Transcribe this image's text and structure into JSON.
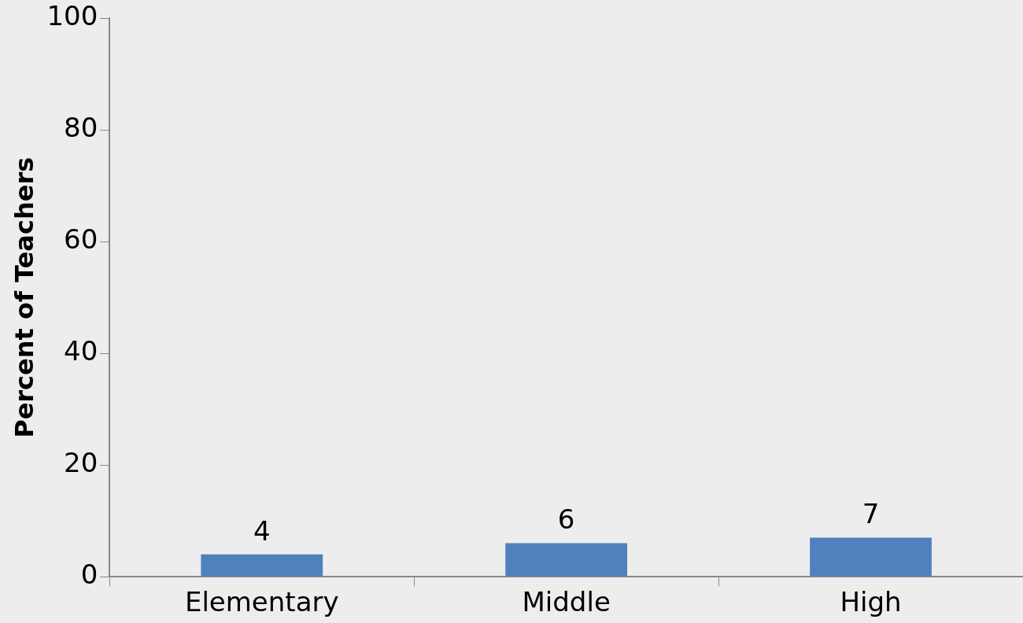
{
  "chart_data": {
    "type": "bar",
    "ylabel": "Percent of Teachers",
    "categories": [
      "Elementary",
      "Middle",
      "High"
    ],
    "values": [
      4,
      6,
      7
    ],
    "color": "#4f81bd",
    "ylim": [
      0,
      100
    ],
    "yticks": [
      0,
      20,
      40,
      60,
      80,
      100
    ],
    "grid": false,
    "legend": false,
    "data_labels": true
  }
}
